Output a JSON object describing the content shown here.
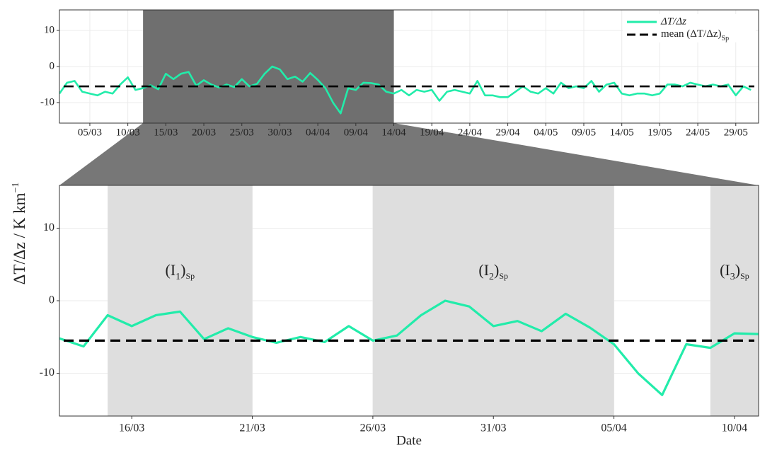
{
  "chart_data": [
    {
      "type": "line",
      "x": [
        "01/03",
        "02/03",
        "03/03",
        "04/03",
        "05/03",
        "06/03",
        "07/03",
        "08/03",
        "09/03",
        "10/03",
        "11/03",
        "12/03",
        "13/03",
        "14/03",
        "15/03",
        "16/03",
        "17/03",
        "18/03",
        "19/03",
        "20/03",
        "21/03",
        "22/03",
        "23/03",
        "24/03",
        "25/03",
        "26/03",
        "27/03",
        "28/03",
        "29/03",
        "30/03",
        "31/03",
        "01/04",
        "02/04",
        "03/04",
        "04/04",
        "05/04",
        "06/04",
        "07/04",
        "08/04",
        "09/04",
        "10/04",
        "11/04",
        "12/04",
        "13/04",
        "14/04",
        "15/04",
        "16/04",
        "17/04",
        "18/04",
        "19/04",
        "20/04",
        "21/04",
        "22/04",
        "23/04",
        "24/04",
        "25/04",
        "26/04",
        "27/04",
        "28/04",
        "29/04",
        "30/04",
        "01/05",
        "02/05",
        "03/05",
        "04/05",
        "05/05",
        "06/05",
        "07/05",
        "08/05",
        "09/05",
        "10/05",
        "11/05",
        "12/05",
        "13/05",
        "14/05",
        "15/05",
        "16/05",
        "17/05",
        "18/05",
        "19/05",
        "20/05",
        "21/05",
        "22/05",
        "23/05",
        "24/05",
        "25/05",
        "26/05",
        "27/05",
        "28/05",
        "29/05",
        "30/05",
        "31/05"
      ],
      "series": [
        {
          "name": "ΔT/Δz",
          "color": "#22ecaa",
          "values": [
            -7.5,
            -4.5,
            -4,
            -7,
            -7.5,
            -8,
            -7,
            -7.5,
            -5,
            -3,
            -6.5,
            -6,
            -5.2,
            -6.3,
            -2,
            -3.5,
            -2,
            -1.5,
            -5.3,
            -3.8,
            -5,
            -5.8,
            -5,
            -5.7,
            -3.5,
            -5.5,
            -4.8,
            -2,
            0,
            -0.8,
            -3.5,
            -2.8,
            -4.2,
            -1.8,
            -3.7,
            -6,
            -10,
            -13,
            -6,
            -6.5,
            -4.5,
            -4.6,
            -5,
            -7,
            -7.5,
            -6.5,
            -8,
            -6.5,
            -7,
            -6.5,
            -9.5,
            -7,
            -6.5,
            -7,
            -7.5,
            -4,
            -8,
            -8,
            -8.5,
            -8.5,
            -7,
            -5.5,
            -7,
            -7.5,
            -6,
            -7.5,
            -4.5,
            -6,
            -5.5,
            -6,
            -4,
            -7,
            -5,
            -4.5,
            -7.5,
            -8,
            -7.5,
            -7.5,
            -8,
            -7.5,
            -5,
            -5,
            -5.5,
            -4.5,
            -5,
            -5.5,
            -5,
            -5.5,
            -5,
            -8,
            -5.5,
            -6.5
          ]
        }
      ],
      "mean": {
        "name": "mean (ΔT/Δz)",
        "name_sub": "Sp",
        "value": -5.5,
        "color": "#000000"
      },
      "highlight": [
        "12/03",
        "14/04"
      ],
      "xlim": [
        "01/03",
        "01/06"
      ],
      "xticks": [
        "05/03",
        "10/03",
        "15/03",
        "20/03",
        "25/03",
        "30/03",
        "04/04",
        "09/04",
        "14/04",
        "19/04",
        "24/04",
        "29/04",
        "04/05",
        "09/05",
        "14/05",
        "19/05",
        "24/05",
        "29/05"
      ],
      "ylim": [
        -15.7,
        15.7
      ],
      "yticks": [
        10,
        0,
        -10
      ],
      "grid": true
    },
    {
      "type": "line",
      "x": [
        "13/03",
        "14/03",
        "15/03",
        "16/03",
        "17/03",
        "18/03",
        "19/03",
        "20/03",
        "21/03",
        "22/03",
        "23/03",
        "24/03",
        "25/03",
        "26/03",
        "27/03",
        "28/03",
        "29/03",
        "30/03",
        "31/03",
        "01/04",
        "02/04",
        "03/04",
        "04/04",
        "05/04",
        "06/04",
        "07/04",
        "08/04",
        "09/04",
        "10/04",
        "11/04"
      ],
      "series": [
        {
          "name": "ΔT/Δz",
          "color": "#22ecaa",
          "values": [
            -5.2,
            -6.3,
            -2,
            -3.5,
            -2,
            -1.5,
            -5.3,
            -3.8,
            -5,
            -5.8,
            -5,
            -5.7,
            -3.5,
            -5.5,
            -4.8,
            -2,
            0,
            -0.8,
            -3.5,
            -2.8,
            -4.2,
            -1.8,
            -3.7,
            -6,
            -10,
            -13,
            -6,
            -6.5,
            -4.5,
            -4.6
          ]
        }
      ],
      "mean": {
        "value": -5.5,
        "color": "#000000"
      },
      "intervals": [
        {
          "start": "15/03",
          "end": "21/03",
          "label": [
            "(I",
            "1",
            ")",
            "Sp"
          ]
        },
        {
          "start": "26/03",
          "end": "05/04",
          "label": [
            "(I",
            "2",
            ")",
            "Sp"
          ]
        },
        {
          "start": "09/04",
          "end": "11/04",
          "label": [
            "(I",
            "3",
            ")",
            "Sp"
          ]
        }
      ],
      "xlim": [
        "13/03",
        "11/04"
      ],
      "xticks": [
        "16/03",
        "21/03",
        "26/03",
        "31/03",
        "05/04",
        "10/04"
      ],
      "ylim": [
        -15.9,
        15.9
      ],
      "yticks": [
        10,
        0,
        -10
      ],
      "grid": true,
      "x_label": "Date",
      "y_label": "ΔT/Δz / K km",
      "y_label_sup": "−1"
    }
  ]
}
